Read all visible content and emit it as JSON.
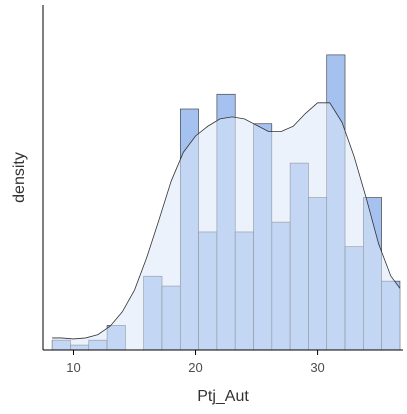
{
  "chart_data": {
    "type": "histogram",
    "xlabel": "Ptj_Aut",
    "ylabel": "density",
    "xlim": [
      7.5,
      37
    ],
    "ylim": [
      0,
      0.103
    ],
    "x_ticks": [
      10,
      20,
      30
    ],
    "y_ticks": [],
    "grid": false,
    "bin_width": 1.5,
    "bins": [
      {
        "start": 8.25,
        "end": 9.75,
        "count": 2
      },
      {
        "start": 9.75,
        "end": 11.25,
        "count": 1
      },
      {
        "start": 11.25,
        "end": 12.75,
        "count": 2
      },
      {
        "start": 12.75,
        "end": 14.25,
        "count": 5
      },
      {
        "start": 14.25,
        "end": 15.75,
        "count": 0
      },
      {
        "start": 15.75,
        "end": 17.25,
        "count": 15
      },
      {
        "start": 17.25,
        "end": 18.75,
        "count": 13
      },
      {
        "start": 18.75,
        "end": 20.25,
        "count": 49
      },
      {
        "start": 20.25,
        "end": 21.75,
        "count": 24
      },
      {
        "start": 21.75,
        "end": 23.25,
        "count": 52
      },
      {
        "start": 23.25,
        "end": 24.75,
        "count": 24
      },
      {
        "start": 24.75,
        "end": 26.25,
        "count": 46
      },
      {
        "start": 26.25,
        "end": 27.75,
        "count": 26
      },
      {
        "start": 27.75,
        "end": 29.25,
        "count": 38
      },
      {
        "start": 29.25,
        "end": 30.75,
        "count": 31
      },
      {
        "start": 30.75,
        "end": 32.25,
        "count": 60
      },
      {
        "start": 32.25,
        "end": 33.75,
        "count": 21
      },
      {
        "start": 33.75,
        "end": 35.25,
        "count": 31
      },
      {
        "start": 35.25,
        "end": 36.75,
        "count": 14
      }
    ],
    "density_curve": {
      "x": [
        8.25,
        9,
        10,
        11,
        12,
        13,
        14,
        15,
        16,
        17,
        18,
        19,
        20,
        21,
        22,
        23,
        24,
        25,
        26,
        27,
        28,
        29,
        30,
        31,
        32,
        33,
        34,
        35,
        36,
        36.75
      ],
      "y": [
        0.0036,
        0.0036,
        0.0033,
        0.0036,
        0.0046,
        0.0071,
        0.0114,
        0.0179,
        0.0276,
        0.0388,
        0.0504,
        0.059,
        0.0639,
        0.0668,
        0.069,
        0.0696,
        0.069,
        0.0671,
        0.0652,
        0.0652,
        0.0668,
        0.0706,
        0.0738,
        0.0738,
        0.068,
        0.0577,
        0.0452,
        0.0317,
        0.0221,
        0.0184
      ]
    },
    "colors": {
      "histogram_fill": "#a5c1ef",
      "histogram_stroke": "#333333",
      "density_fill": "#dce7f7",
      "density_stroke": "#333333",
      "axis": "#000000",
      "tick_label": "#4d4d4d",
      "axis_title": "#333333"
    }
  }
}
